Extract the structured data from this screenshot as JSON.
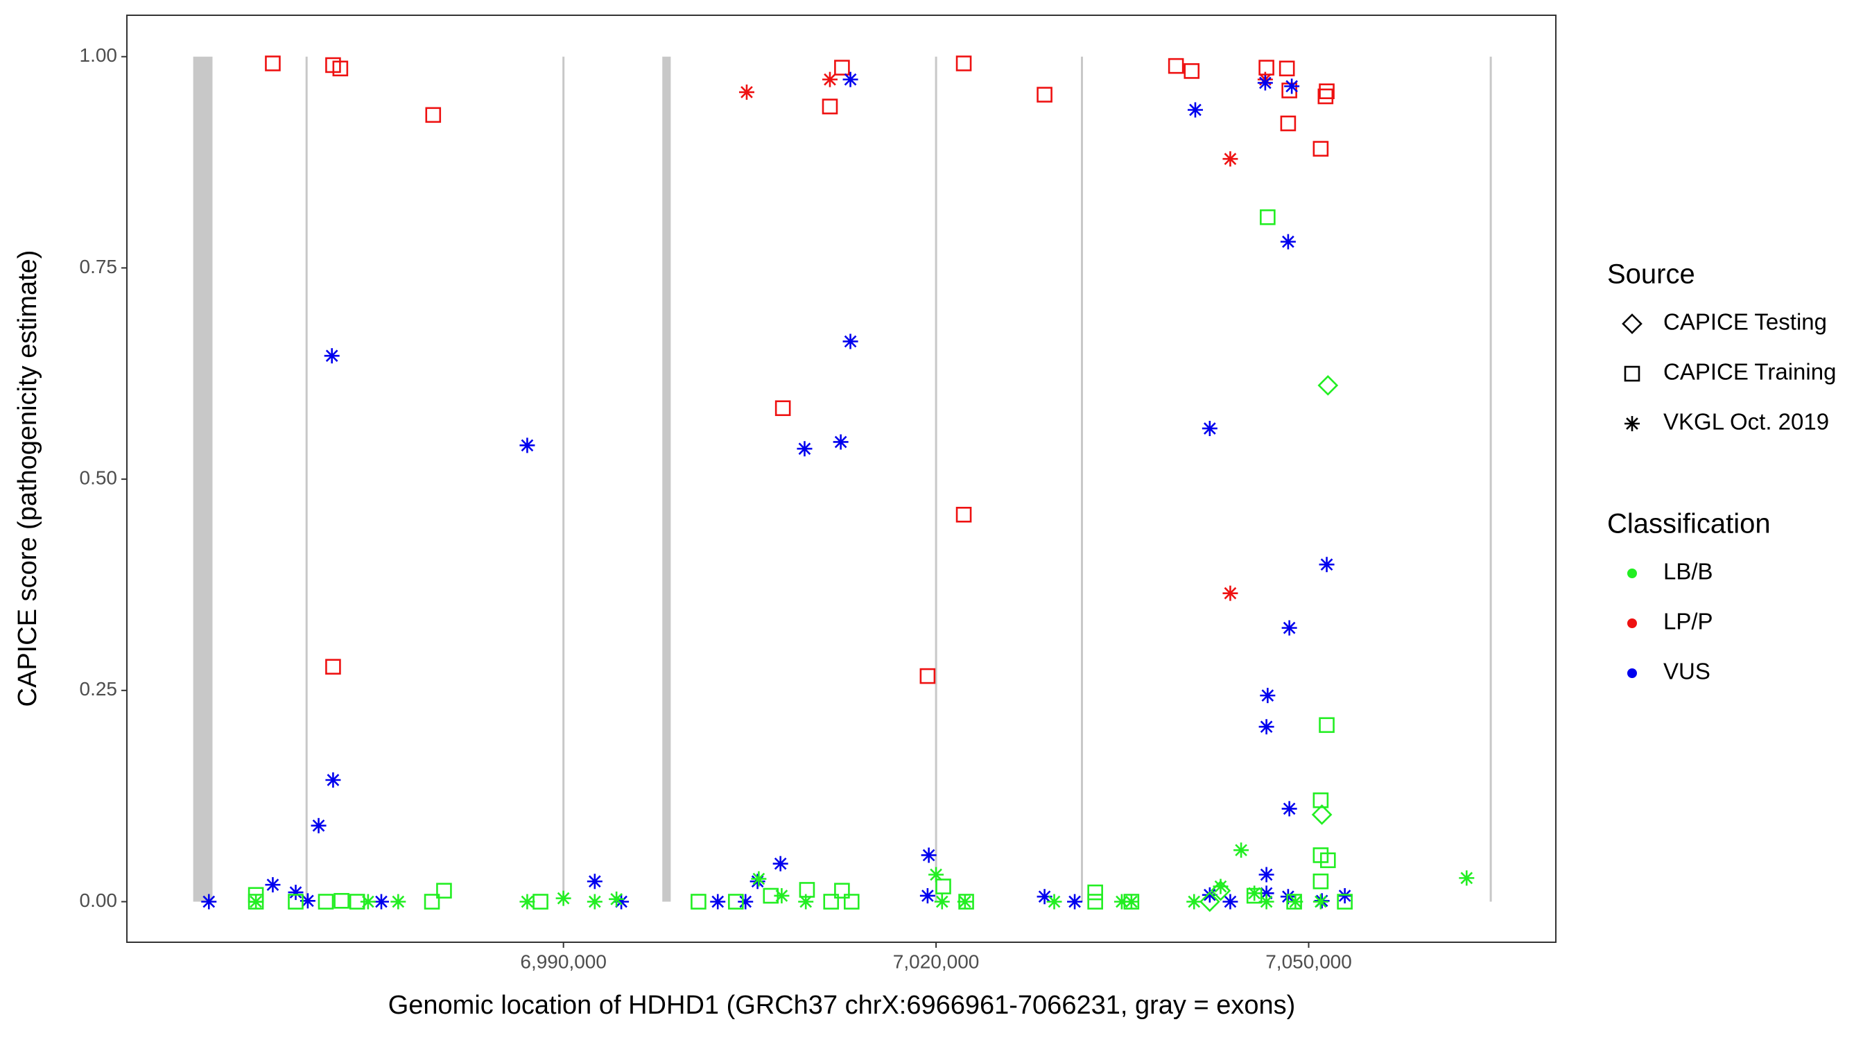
{
  "chart_data": {
    "type": "scatter",
    "x_label": "Genomic location of HDHD1 (GRCh37 chrX:6966961-7066231, gray = exons)",
    "y_label": "CAPICE score (pathogenicity estimate)",
    "xlim": [
      6954850,
      7069900
    ],
    "ylim": [
      -0.048,
      1.049
    ],
    "xticks": [
      {
        "value": 6990000,
        "label": "6,990,000"
      },
      {
        "value": 7020000,
        "label": "7,020,000"
      },
      {
        "value": 7050000,
        "label": "7,050,000"
      }
    ],
    "yticks": [
      {
        "value": 0,
        "label": "0.00"
      },
      {
        "value": 0.25,
        "label": "0.25"
      },
      {
        "value": 0.5,
        "label": "0.50"
      },
      {
        "value": 0.75,
        "label": "0.75"
      },
      {
        "value": 1,
        "label": "1.00"
      }
    ],
    "grid": false,
    "exon_color": "#c8c8c8",
    "exons": [
      [
        6960190,
        6961743
      ],
      [
        6969270,
        6969370
      ],
      [
        6989950,
        6990050
      ],
      [
        6997958,
        6998638
      ],
      [
        7019950,
        7020050
      ],
      [
        7031700,
        7031790
      ],
      [
        7064610,
        7064710
      ]
    ],
    "legend": {
      "source": {
        "title": "Source",
        "items": [
          {
            "name": "CAPICE Testing",
            "shape": "diamond"
          },
          {
            "name": "CAPICE Training",
            "shape": "square"
          },
          {
            "name": "VKGL Oct. 2019",
            "shape": "asterisk"
          }
        ]
      },
      "classification": {
        "title": "Classification",
        "items": [
          {
            "name": "LB/B",
            "color": "#22ee22"
          },
          {
            "name": "LP/P",
            "color": "#ee1111"
          },
          {
            "name": "VUS",
            "color": "#0000ee"
          }
        ]
      }
    },
    "series": [
      {
        "source": "CAPICE Training",
        "classification": "LP/P",
        "x": [
          6966598,
          6971453,
          6972035,
          6979511,
          6971453,
          7007667,
          7012425,
          7011454,
          7022231,
          7022231,
          7019318,
          7028736,
          7039318,
          7040580,
          7046600,
          7048250,
          7048444,
          7048347,
          7051454,
          7051357,
          7050969
        ],
        "y": [
          0.992,
          0.99,
          0.986,
          0.931,
          0.278,
          0.584,
          0.987,
          0.941,
          0.992,
          0.458,
          0.267,
          0.955,
          0.989,
          0.983,
          0.987,
          0.986,
          0.96,
          0.921,
          0.959,
          0.953,
          0.891
        ]
      },
      {
        "source": "VKGL Oct. 2019",
        "classification": "LP/P",
        "x": [
          7004754,
          7011454,
          7046503,
          7043688,
          7043688
        ],
        "y": [
          0.958,
          0.973,
          0.973,
          0.879,
          0.365
        ]
      },
      {
        "source": "VKGL Oct. 2019",
        "classification": "VUS",
        "x": [
          6961452,
          6966598,
          6968443,
          6969414,
          6970288,
          6971453,
          6971356,
          6975336,
          6987084,
          6992521,
          6994657,
          7002424,
          7004657,
          7005628,
          7007473,
          7009415,
          7012327,
          7013104,
          7013104,
          7019415,
          7019318,
          7028736,
          7031163,
          7040871,
          7042036,
          7042036,
          7043688,
          7046503,
          7046697,
          7046600,
          7046600,
          7046600,
          7048347,
          7048444,
          7048444,
          7048347,
          7048638,
          7051454,
          7051066,
          7052910
        ],
        "y": [
          0,
          0.02,
          0.011,
          0.001,
          0.09,
          0.144,
          0.646,
          0,
          0.54,
          0.024,
          0,
          0,
          0,
          0.024,
          0.045,
          0.536,
          0.544,
          0.973,
          0.663,
          0.055,
          0.007,
          0.006,
          0,
          0.937,
          0.56,
          0.008,
          0,
          0.969,
          0.244,
          0.207,
          0.032,
          0.01,
          0.781,
          0.324,
          0.11,
          0.006,
          0.965,
          0.399,
          0.001,
          0.007
        ]
      },
      {
        "source": "VKGL Oct. 2019",
        "classification": "LB/B",
        "x": [
          6965239,
          6987084,
          6989997,
          6992521,
          6994269,
          7005726,
          7007570,
          7009512,
          7019998,
          7020484,
          7022329,
          7029514,
          7034951,
          7035728,
          7040774,
          7042910,
          7044561,
          7045629,
          7046600,
          7048930,
          7050969,
          7062717,
          6974268,
          6976695
        ],
        "y": [
          0,
          0,
          0.004,
          0,
          0.003,
          0.027,
          0.007,
          0,
          0.032,
          0,
          0,
          0,
          0,
          0,
          0,
          0.018,
          0.061,
          0.01,
          0,
          0,
          0,
          0.028,
          0,
          0
        ]
      },
      {
        "source": "CAPICE Training",
        "classification": "LB/B",
        "x": [
          6965239,
          6965239,
          6968443,
          6970870,
          6972132,
          6973394,
          6979414,
          6980385,
          6988152,
          7000871,
          7003881,
          7006697,
          7009609,
          7011551,
          7012425,
          7013201,
          7020581,
          7022426,
          7032815,
          7032815,
          7035728,
          7046697,
          7045629,
          7048833,
          7050969,
          7050969,
          7051551,
          7050969,
          7051454,
          7052910
        ],
        "y": [
          0.008,
          0,
          0,
          0,
          0.001,
          0,
          0,
          0.013,
          0,
          0,
          0,
          0.007,
          0.014,
          0,
          0.013,
          0,
          0.018,
          0,
          0.011,
          0,
          0,
          0.81,
          0.007,
          0,
          0.12,
          0.055,
          0.049,
          0.024,
          0.209,
          0
        ]
      },
      {
        "source": "CAPICE Testing",
        "classification": "LB/B",
        "x": [
          7051551,
          7051066,
          7042910,
          7042036
        ],
        "y": [
          0.611,
          0.103,
          0.013,
          0
        ]
      }
    ]
  }
}
